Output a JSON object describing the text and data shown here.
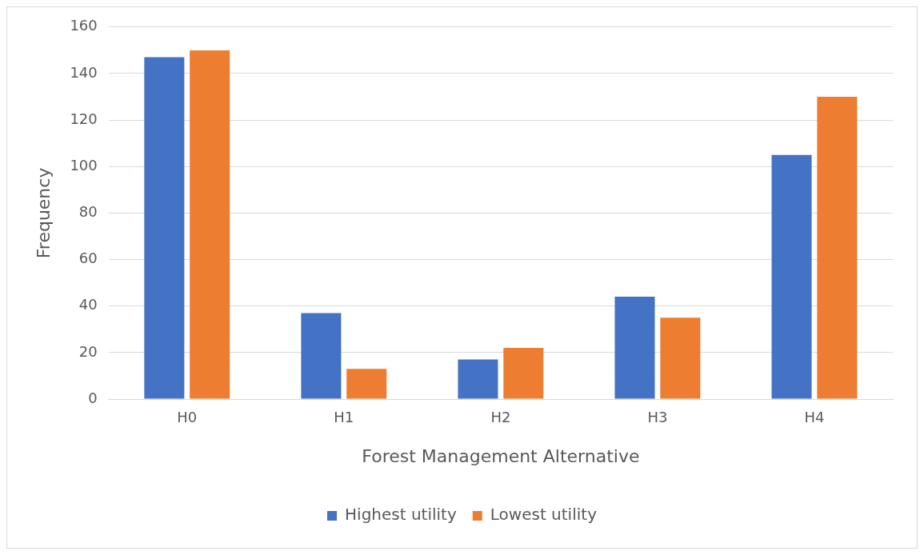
{
  "chart_data": {
    "type": "bar",
    "xlabel": "Forest Management Alternative",
    "ylabel": "Frequency",
    "categories": [
      "H0",
      "H1",
      "H2",
      "H3",
      "H4"
    ],
    "series": [
      {
        "name": "Highest utility",
        "color": "#4472c4",
        "values": [
          147,
          37,
          17,
          44,
          105
        ]
      },
      {
        "name": "Lowest utility",
        "color": "#ed7d31",
        "values": [
          150,
          13,
          22,
          35,
          130
        ]
      }
    ],
    "ylim": [
      0,
      160
    ],
    "yticks": [
      0,
      20,
      40,
      60,
      80,
      100,
      120,
      140,
      160
    ],
    "grid": "y",
    "legend": "bottom"
  }
}
